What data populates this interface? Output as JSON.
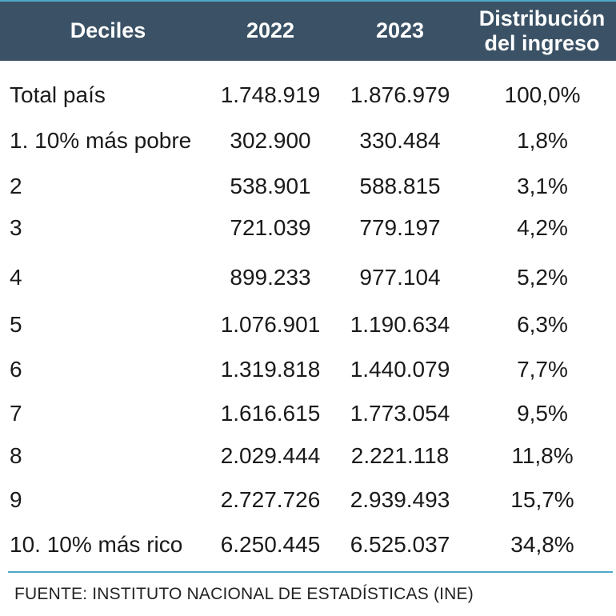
{
  "table": {
    "headers": {
      "deciles": "Deciles",
      "y2022": "2022",
      "y2023": "2023",
      "distribution_line1": "Distribución",
      "distribution_line2": "del ingreso"
    },
    "rows": [
      {
        "label": "Total país",
        "y2022": "1.748.919",
        "y2023": "1.876.979",
        "distribution": "100,0%"
      },
      {
        "label": "1. 10% más pobre",
        "y2022": "302.900",
        "y2023": "330.484",
        "distribution": "1,8%"
      },
      {
        "label": "2",
        "y2022": "538.901",
        "y2023": "588.815",
        "distribution": "3,1%"
      },
      {
        "label": "3",
        "y2022": "721.039",
        "y2023": "779.197",
        "distribution": "4,2%"
      },
      {
        "label": "4",
        "y2022": "899.233",
        "y2023": "977.104",
        "distribution": "5,2%"
      },
      {
        "label": "5",
        "y2022": "1.076.901",
        "y2023": "1.190.634",
        "distribution": "6,3%"
      },
      {
        "label": "6",
        "y2022": "1.319.818",
        "y2023": "1.440.079",
        "distribution": "7,7%"
      },
      {
        "label": "7",
        "y2022": "1.616.615",
        "y2023": "1.773.054",
        "distribution": "9,5%"
      },
      {
        "label": "8",
        "y2022": "2.029.444",
        "y2023": "2.221.118",
        "distribution": "11,8%"
      },
      {
        "label": "9",
        "y2022": "2.727.726",
        "y2023": "2.939.493",
        "distribution": "15,7%"
      },
      {
        "label": "10. 10% más rico",
        "y2022": "6.250.445",
        "y2023": "6.525.037",
        "distribution": "34,8%"
      }
    ]
  },
  "footer": {
    "source": "FUENTE: INSTITUTO NACIONAL DE ESTADÍSTICAS (INE)"
  },
  "colors": {
    "header_bg": "#3b5266",
    "accent_line": "#4fa8c8",
    "header_text": "#ffffff"
  }
}
